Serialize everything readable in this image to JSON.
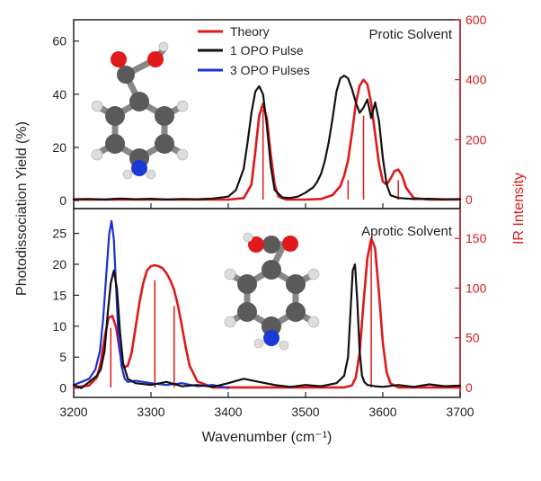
{
  "colors": {
    "theory": "#e0191a",
    "one_opo": "#111111",
    "three_opo": "#1a2fd6",
    "axis": "#222222",
    "red_axis": "#d81b1b"
  },
  "shared": {
    "xlabel": "Wavenumber (cm⁻¹)",
    "ylabel": "Photodissociation Yield (%)",
    "ylabel_right": "IR Intensity",
    "xlim": [
      3200,
      3700
    ],
    "xticks": [
      "3200",
      "3300",
      "3400",
      "3500",
      "3600",
      "3700"
    ]
  },
  "legend": [
    {
      "label": "Theory",
      "color": "#e0191a"
    },
    {
      "label": "1 OPO Pulse",
      "color": "#111111"
    },
    {
      "label": "3 OPO Pulses",
      "color": "#1a2fd6"
    }
  ],
  "chart_data": [
    {
      "type": "line",
      "panel": "top",
      "annotation": "Protic Solvent",
      "ylim": [
        -3,
        68
      ],
      "yticks": [
        0,
        20,
        40,
        60
      ],
      "y2lim": [
        -30,
        600
      ],
      "y2ticks": [
        0,
        200,
        400,
        600
      ],
      "series": [
        {
          "name": "1 OPO Pulse",
          "axis": "left",
          "x": [
            3200,
            3220,
            3240,
            3260,
            3280,
            3300,
            3320,
            3340,
            3360,
            3380,
            3400,
            3410,
            3420,
            3425,
            3430,
            3435,
            3440,
            3445,
            3450,
            3455,
            3460,
            3470,
            3480,
            3490,
            3500,
            3505,
            3510,
            3515,
            3520,
            3525,
            3530,
            3535,
            3540,
            3545,
            3550,
            3555,
            3560,
            3565,
            3570,
            3575,
            3580,
            3585,
            3590,
            3595,
            3600,
            3605,
            3610,
            3620,
            3630,
            3640,
            3660,
            3680,
            3700
          ],
          "y": [
            0.5,
            0.6,
            0.4,
            0.8,
            0.5,
            0.7,
            0.4,
            0.6,
            0.5,
            0.8,
            1.5,
            4,
            12,
            22,
            33,
            41,
            43,
            40,
            28,
            13,
            4,
            1.2,
            1,
            1.5,
            3,
            4,
            5,
            7,
            10,
            15,
            22,
            31,
            41,
            46,
            47,
            46,
            42,
            37,
            33,
            35,
            38,
            31,
            37,
            30,
            16,
            6,
            2,
            1,
            0.8,
            0.6,
            0.7,
            0.5,
            0.6
          ]
        },
        {
          "name": "Theory",
          "axis": "right",
          "x": [
            3200,
            3300,
            3400,
            3420,
            3430,
            3435,
            3440,
            3445,
            3450,
            3455,
            3460,
            3465,
            3475,
            3500,
            3520,
            3535,
            3545,
            3550,
            3555,
            3560,
            3565,
            3570,
            3575,
            3580,
            3585,
            3590,
            3595,
            3600,
            3605,
            3610,
            3615,
            3620,
            3625,
            3630,
            3640,
            3660,
            3700
          ],
          "y": [
            0,
            0,
            0,
            5,
            50,
            160,
            280,
            320,
            270,
            150,
            50,
            10,
            0,
            0,
            2,
            15,
            45,
            80,
            130,
            220,
            320,
            380,
            400,
            385,
            320,
            220,
            120,
            60,
            50,
            70,
            95,
            100,
            80,
            40,
            5,
            0,
            0
          ]
        }
      ],
      "sticks": [
        {
          "x": 3445,
          "y": 300
        },
        {
          "x": 3555,
          "y": 65
        },
        {
          "x": 3575,
          "y": 280
        },
        {
          "x": 3620,
          "y": 65
        }
      ]
    },
    {
      "type": "line",
      "panel": "bottom",
      "annotation": "Aprotic Solvent",
      "ylim": [
        -1.5,
        29
      ],
      "yticks": [
        0,
        5,
        10,
        15,
        20,
        25
      ],
      "y2lim": [
        -10,
        180
      ],
      "y2ticks": [
        0,
        50,
        100,
        150
      ],
      "series": [
        {
          "name": "1 OPO Pulse",
          "axis": "left",
          "x": [
            3200,
            3210,
            3220,
            3230,
            3235,
            3240,
            3244,
            3248,
            3252,
            3256,
            3260,
            3264,
            3270,
            3280,
            3300,
            3320,
            3340,
            3360,
            3380,
            3400,
            3420,
            3440,
            3460,
            3480,
            3500,
            3520,
            3540,
            3550,
            3555,
            3558,
            3561,
            3564,
            3567,
            3570,
            3573,
            3576,
            3580,
            3590,
            3600,
            3620,
            3640,
            3660,
            3680,
            3700
          ],
          "y": [
            0.5,
            0,
            1,
            2,
            3,
            6,
            12,
            17,
            19,
            16,
            9,
            4,
            1.5,
            0.8,
            0.5,
            1,
            0.3,
            0.5,
            0.2,
            0.8,
            1.5,
            1,
            0.5,
            0.2,
            0.5,
            0.3,
            0.8,
            2,
            5,
            12,
            19,
            20,
            14,
            6,
            2,
            1,
            0.5,
            0.3,
            0.2,
            0.5,
            0.2,
            0.6,
            0.3,
            0.4
          ]
        },
        {
          "name": "3 OPO Pulses",
          "axis": "left",
          "x": [
            3200,
            3210,
            3220,
            3228,
            3234,
            3238,
            3242,
            3246,
            3249,
            3252,
            3255,
            3258,
            3262,
            3266,
            3270,
            3280,
            3290,
            3300,
            3320,
            3340,
            3360,
            3380,
            3400
          ],
          "y": [
            0.5,
            1,
            1.5,
            3,
            6,
            11,
            18,
            25,
            27,
            24,
            16,
            8,
            3.5,
            1.5,
            1,
            1.2,
            1,
            0.8,
            0.5,
            0.8,
            0.3,
            0.5,
            0
          ]
        },
        {
          "name": "Theory",
          "axis": "right",
          "x": [
            3200,
            3220,
            3230,
            3235,
            3240,
            3245,
            3250,
            3255,
            3260,
            3265,
            3270,
            3275,
            3280,
            3285,
            3290,
            3295,
            3300,
            3305,
            3310,
            3315,
            3320,
            3325,
            3330,
            3335,
            3340,
            3345,
            3350,
            3360,
            3380,
            3400,
            3500,
            3550,
            3560,
            3565,
            3570,
            3575,
            3580,
            3585,
            3590,
            3595,
            3600,
            3605,
            3610,
            3620,
            3700
          ],
          "y": [
            0,
            2,
            10,
            25,
            50,
            70,
            72,
            60,
            35,
            20,
            22,
            35,
            60,
            85,
            105,
            118,
            122,
            123,
            122,
            120,
            115,
            108,
            98,
            82,
            62,
            40,
            22,
            6,
            0,
            0,
            0,
            0,
            2,
            10,
            35,
            85,
            130,
            150,
            140,
            95,
            45,
            15,
            4,
            0,
            0
          ]
        }
      ],
      "sticks": [
        {
          "x": 3248,
          "y": 60
        },
        {
          "x": 3305,
          "y": 108
        },
        {
          "x": 3330,
          "y": 82
        },
        {
          "x": 3585,
          "y": 150
        }
      ]
    }
  ]
}
